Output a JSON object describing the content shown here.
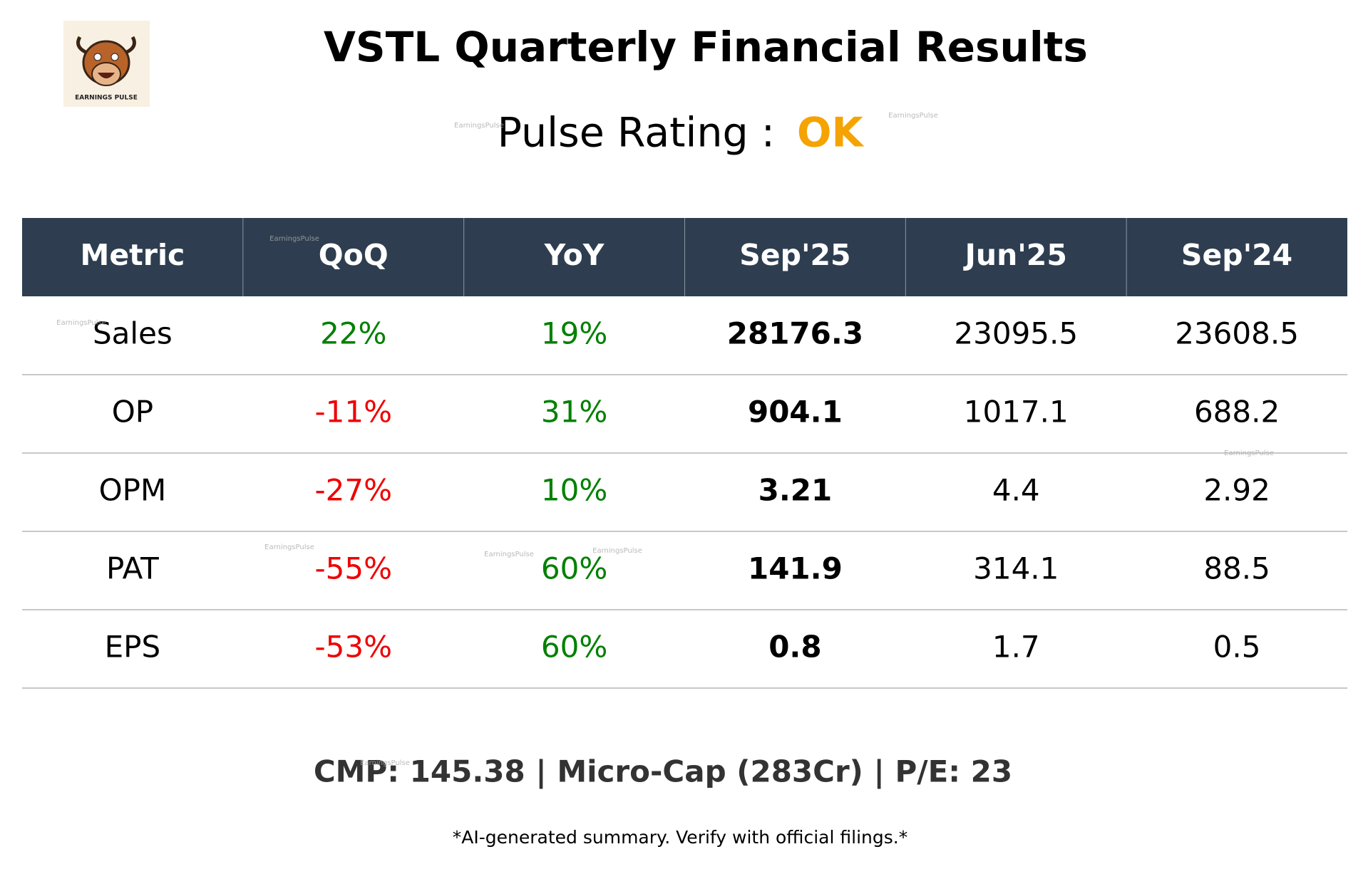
{
  "header": {
    "title": "VSTL Quarterly Financial Results",
    "rating_label": "Pulse Rating :",
    "rating": "OK",
    "logo_text": "EARNINGS PULSE"
  },
  "table": {
    "columns": [
      "Metric",
      "QoQ",
      "YoY",
      "Sep'25",
      "Jun'25",
      "Sep'24"
    ],
    "rows": [
      [
        "Sales",
        "22%",
        "19%",
        "28176.3",
        "23095.5",
        "23608.5"
      ],
      [
        "OP",
        "-11%",
        "31%",
        "904.1",
        "1017.1",
        "688.2"
      ],
      [
        "OPM",
        "-27%",
        "10%",
        "3.21",
        "4.4",
        "2.92"
      ],
      [
        "PAT",
        "-55%",
        "60%",
        "141.9",
        "314.1",
        "88.5"
      ],
      [
        "EPS",
        "-53%",
        "60%",
        "0.8",
        "1.7",
        "0.5"
      ]
    ]
  },
  "footer": {
    "summary": "CMP: 145.38 | Micro-Cap (283Cr) | P/E: 23",
    "disclaimer": "*AI-generated summary. Verify with official filings.*"
  },
  "watermarks": [
    "EarningsPulse",
    "EarningsPulse",
    "EarningsPulse",
    "EarningsPulse",
    "EarningsPulse",
    "EarningsPulse",
    "EarningsPulse",
    "EarningsPulse",
    "EarningsPulse"
  ]
}
